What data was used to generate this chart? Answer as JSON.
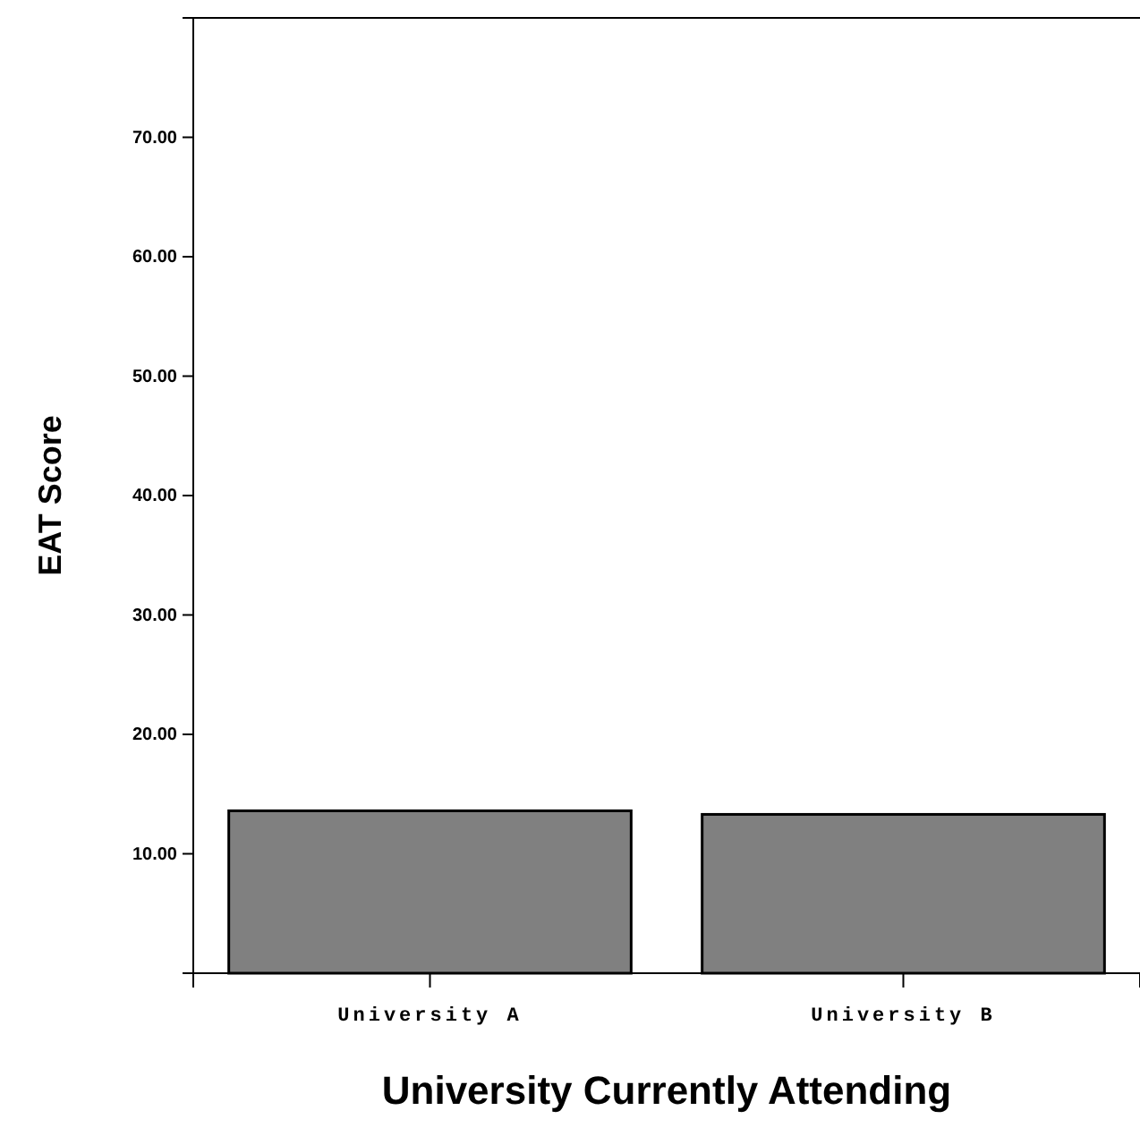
{
  "chart_data": {
    "type": "bar",
    "xlabel": "University Currently Attending",
    "ylabel": "EAT Score",
    "categories": [
      "University A",
      "University B"
    ],
    "values": [
      13.6,
      13.3
    ],
    "color": "#808080",
    "ylim": [
      0,
      80
    ],
    "yticks": [
      {
        "value": 10,
        "label": "10.00"
      },
      {
        "value": 20,
        "label": "20.00"
      },
      {
        "value": 30,
        "label": "30.00"
      },
      {
        "value": 40,
        "label": "40.00"
      },
      {
        "value": 50,
        "label": "50.00"
      },
      {
        "value": 60,
        "label": "60.00"
      },
      {
        "value": 70,
        "label": "70.00"
      }
    ]
  }
}
